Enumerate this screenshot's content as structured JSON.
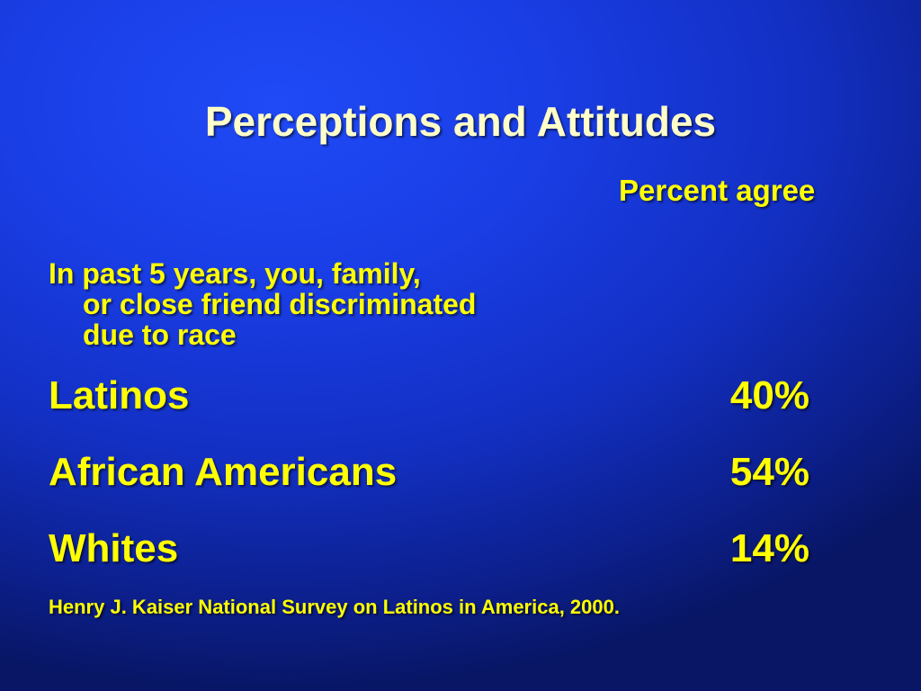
{
  "slide": {
    "title": "Perceptions and Attitudes",
    "column_header": "Percent agree",
    "question_lines": [
      "In past 5 years, you, family,",
      "or close friend discriminated",
      "due to race"
    ],
    "rows": [
      {
        "label": "Latinos",
        "value": "40%"
      },
      {
        "label": "African Americans",
        "value": "54%"
      },
      {
        "label": "Whites",
        "value": "14%"
      }
    ],
    "source": "Henry J. Kaiser National Survey on Latinos in America, 2000."
  },
  "colors": {
    "background": "#1a3ee6",
    "title_text": "#fffdc8",
    "body_text": "#ffff00"
  }
}
